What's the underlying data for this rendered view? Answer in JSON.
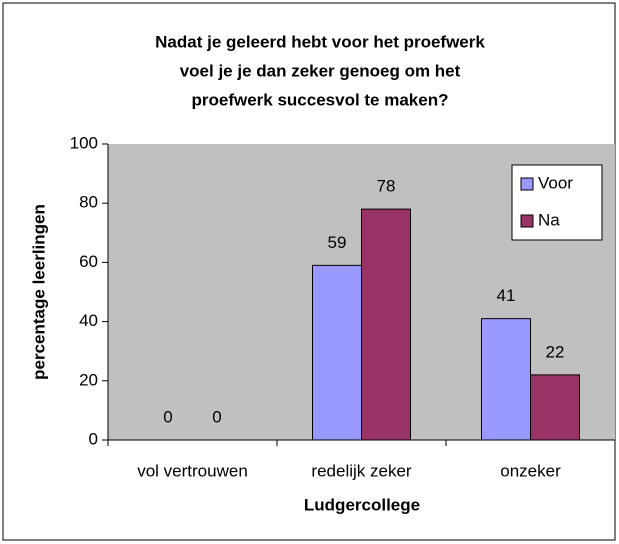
{
  "chart_data": {
    "type": "bar",
    "title": [
      "Nadat je geleerd hebt voor het proefwerk",
      "voel je je dan zeker genoeg om het",
      "proefwerk succesvol te maken?"
    ],
    "x_label": "Ludgercollege",
    "y_label": "percentage leerlingen",
    "categories": [
      "vol vertrouwen",
      "redelijk zeker",
      "onzeker"
    ],
    "series": [
      {
        "name": "Voor",
        "color": "#9999ff",
        "values": [
          0,
          59,
          41
        ]
      },
      {
        "name": "Na",
        "color": "#993366",
        "values": [
          0,
          78,
          22
        ]
      }
    ],
    "ylim": [
      0,
      100
    ],
    "yticks": [
      0,
      20,
      40,
      60,
      80,
      100
    ],
    "plot_background": "#c0c0c0",
    "legend": "right"
  }
}
